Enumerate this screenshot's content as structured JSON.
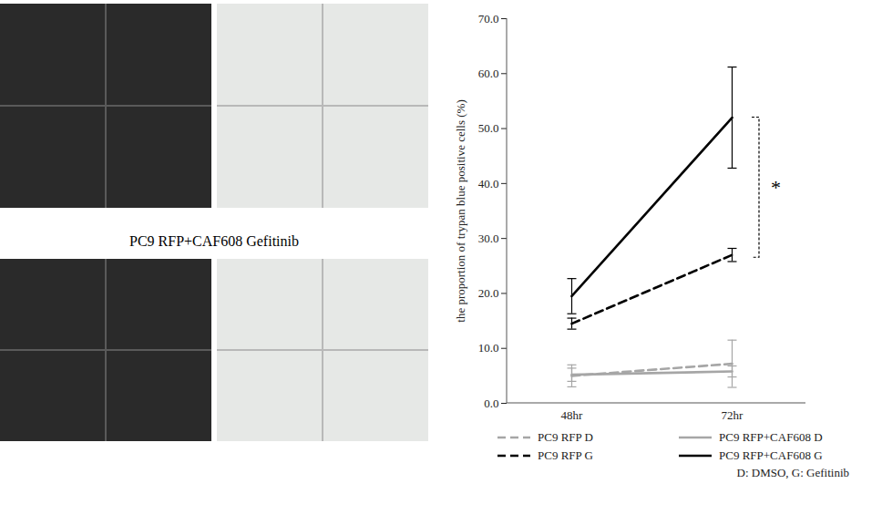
{
  "chart_data": {
    "type": "line",
    "y_label": "the proportion of trypan blue positive cells (%)",
    "categories": [
      "48hr",
      "72hr"
    ],
    "ylim": [
      0,
      70
    ],
    "yticks": [
      {
        "value": 0,
        "label": "0.0"
      },
      {
        "value": 10,
        "label": "10.0"
      },
      {
        "value": 20,
        "label": "20.0"
      },
      {
        "value": 30,
        "label": "30.0"
      },
      {
        "value": 40,
        "label": "40.0"
      },
      {
        "value": 50,
        "label": "50.0"
      },
      {
        "value": 60,
        "label": "60.0"
      },
      {
        "value": 70,
        "label": "70.0"
      }
    ],
    "grid": false,
    "legend": "bottom",
    "series": [
      {
        "name": "PC9 RFP D",
        "color": "#a6a6a6",
        "line_style": "dashed",
        "values": [
          5.0,
          7.2
        ],
        "errors": [
          2.0,
          4.3
        ]
      },
      {
        "name": "PC9 RFP+CAF608 D",
        "color": "#a6a6a6",
        "line_style": "solid",
        "values": [
          5.2,
          5.8
        ],
        "errors": [
          1.2,
          1.0
        ]
      },
      {
        "name": "PC9 RFP G",
        "color": "#000000",
        "line_style": "dashed",
        "values": [
          14.5,
          27.0
        ],
        "errors": [
          1.0,
          1.2
        ]
      },
      {
        "name": "PC9 RFP+CAF608 G",
        "color": "#000000",
        "line_style": "solid",
        "values": [
          19.5,
          52.0
        ],
        "errors": [
          3.2,
          9.2
        ]
      }
    ],
    "annotations": [
      {
        "text": "*",
        "x": "72hr",
        "y_range": [
          26.5,
          52.0
        ]
      },
      {
        "text": "D: DMSO, G: Gefitinib"
      }
    ]
  },
  "micrographs": {
    "caption": "PC9 RFP+CAF608 Gefitinib"
  }
}
